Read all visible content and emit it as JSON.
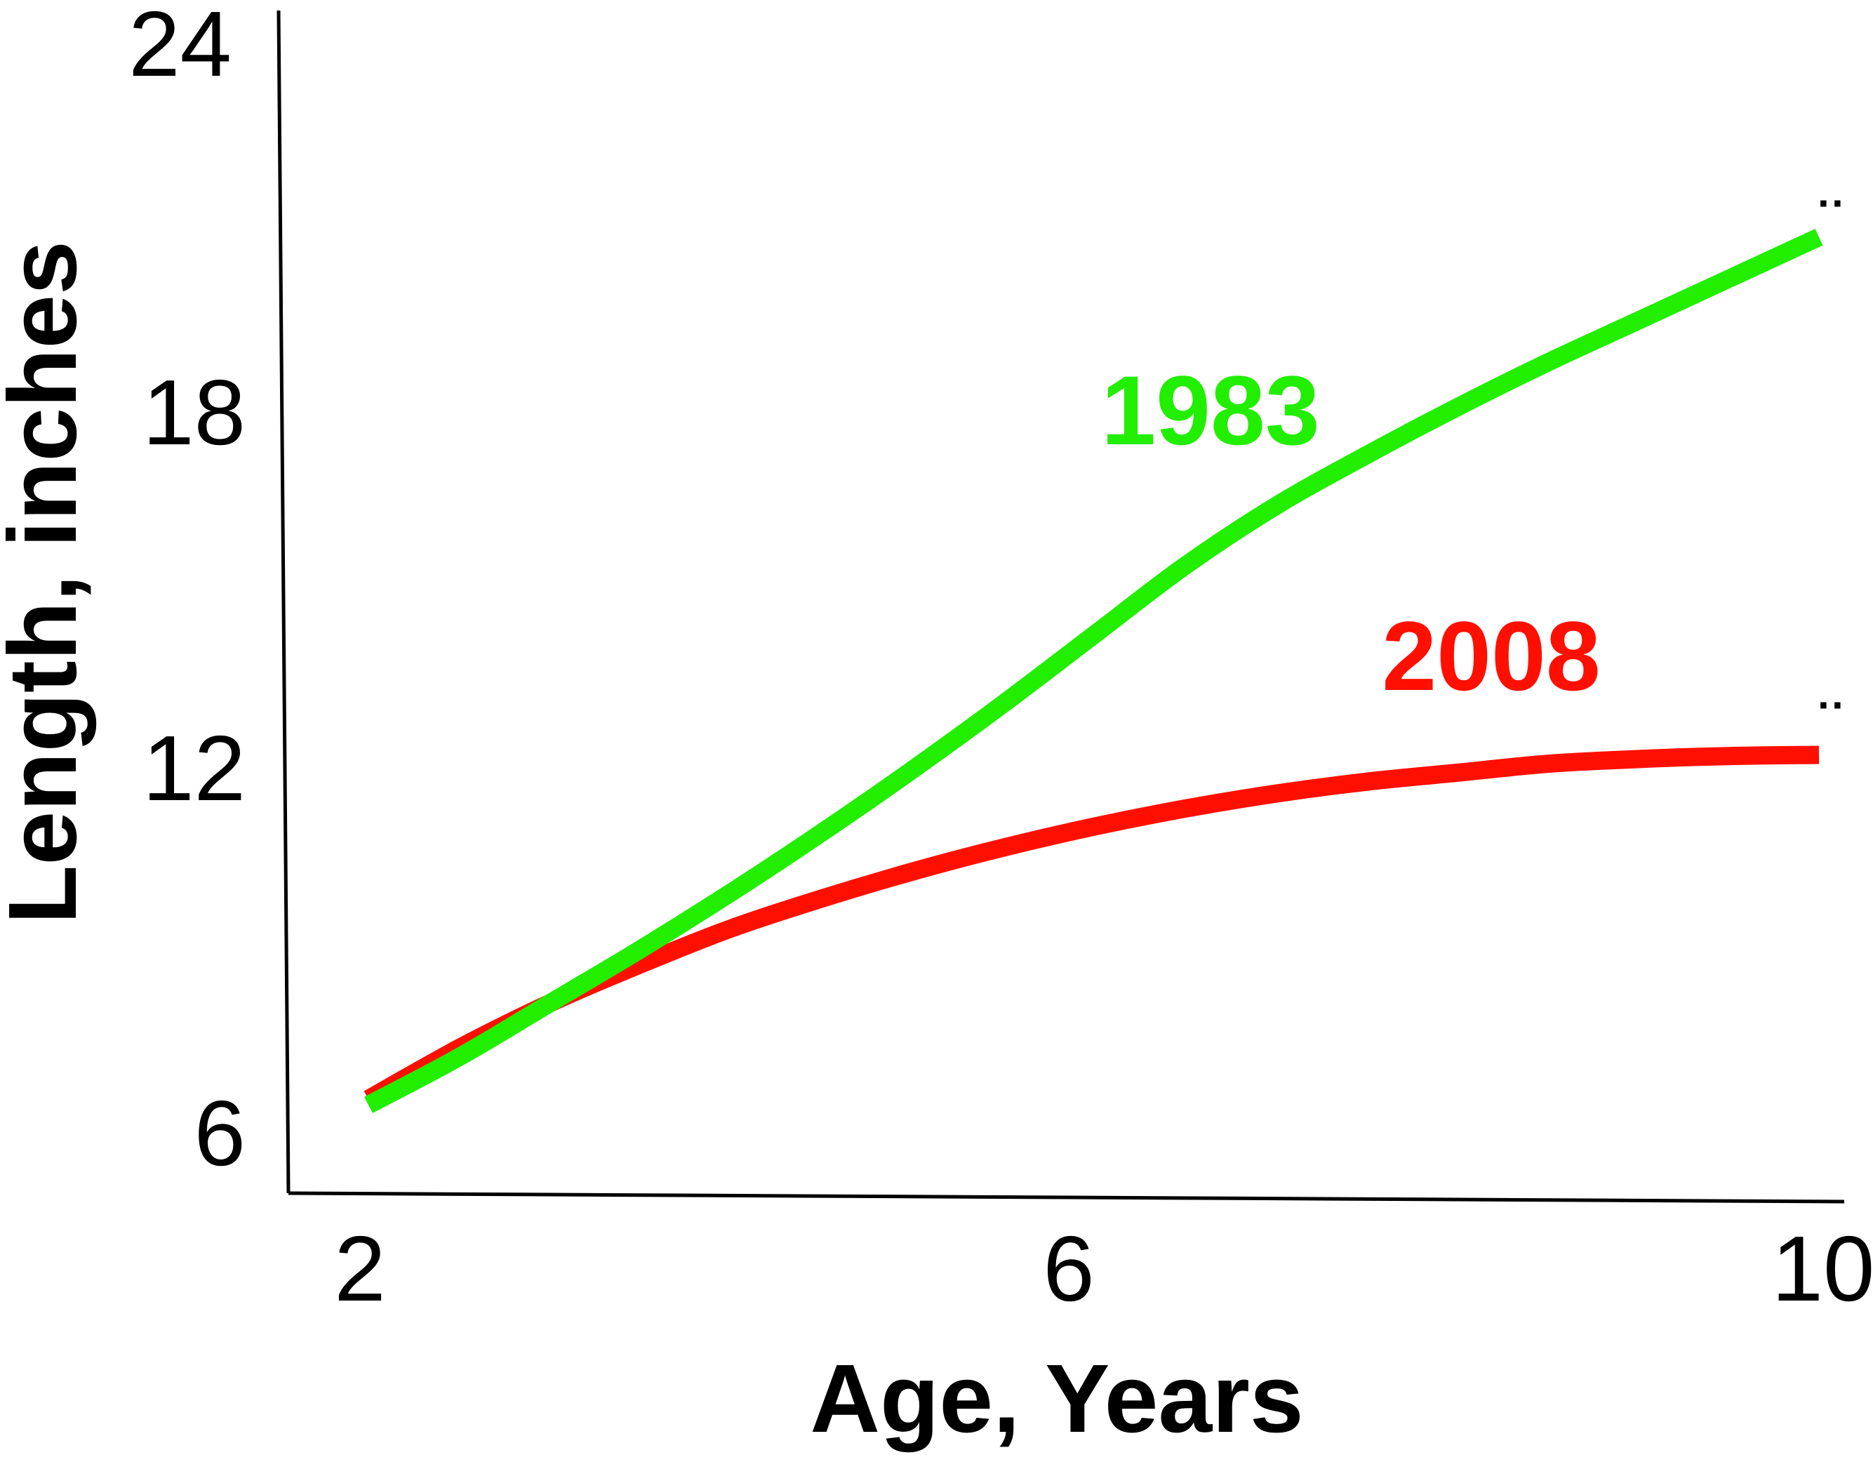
{
  "chart_data": {
    "type": "line",
    "title": "",
    "xlabel": "Age, Years",
    "ylabel": "Length, inches",
    "xlim": [
      2,
      10
    ],
    "ylim": [
      6,
      24
    ],
    "x_ticks": [
      "2",
      "6",
      "10"
    ],
    "y_ticks": [
      "6",
      "12",
      "18",
      "24"
    ],
    "grid": false,
    "series": [
      {
        "name": "2008",
        "color": "#ff0f00",
        "x": [
          2,
          2.5,
          3,
          3.5,
          4,
          4.5,
          5,
          5.5,
          6,
          6.5,
          7,
          7.5,
          8,
          8.5,
          9,
          9.5,
          10
        ],
        "y": [
          6.6,
          7.45,
          8.2,
          8.85,
          9.45,
          9.95,
          10.4,
          10.8,
          11.15,
          11.45,
          11.7,
          11.9,
          12.05,
          12.2,
          12.28,
          12.33,
          12.35
        ]
      },
      {
        "name": "1983",
        "color": "#22ee00",
        "x": [
          2,
          2.5,
          3,
          3.5,
          4,
          4.5,
          5,
          5.5,
          6,
          6.5,
          7,
          7.5,
          8,
          8.5,
          9,
          9.5,
          10
        ],
        "y": [
          6.5,
          7.3,
          8.2,
          9.1,
          10.05,
          11.05,
          12.1,
          13.2,
          14.35,
          15.5,
          16.5,
          17.35,
          18.15,
          18.9,
          19.6,
          20.3,
          21.0
        ]
      }
    ]
  }
}
